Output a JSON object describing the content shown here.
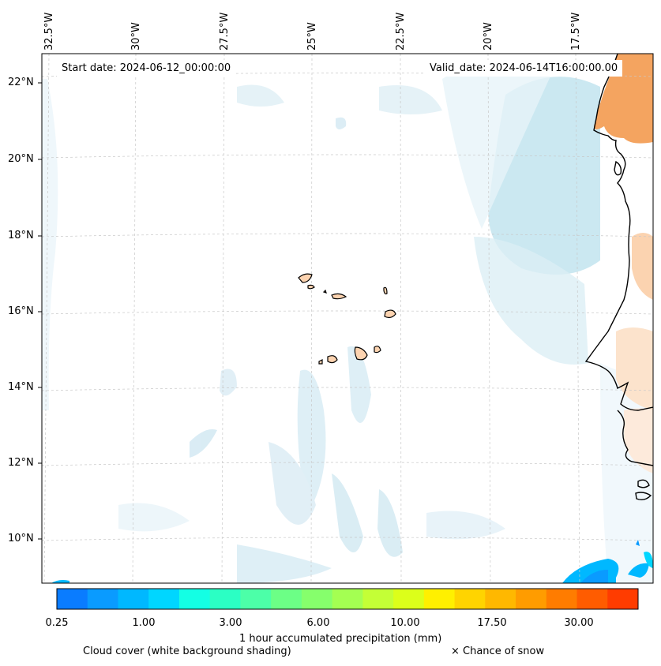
{
  "map": {
    "start_date": "Start date: 2024-06-12_00:00:00",
    "valid_date": "Valid_date: 2024-06-14T16:00:00.00",
    "lon_labels": [
      "32.5°W",
      "30°W",
      "27.5°W",
      "25°W",
      "22.5°W",
      "20°W",
      "17.5°W"
    ],
    "lat_labels": [
      "22°N",
      "20°N",
      "18°N",
      "16°N",
      "14°N",
      "12°N",
      "10°N"
    ]
  },
  "colorbar": {
    "title": "1 hour accumulated precipitation (mm)",
    "tick_labels": [
      "0.25",
      "1.00",
      "3.00",
      "6.00",
      "10.00",
      "17.50",
      "30.00"
    ],
    "colors": [
      "#0a7cff",
      "#0a9bff",
      "#00b8ff",
      "#00d6ff",
      "#14ffe4",
      "#2bffc4",
      "#4cffa8",
      "#6cff86",
      "#86ff6c",
      "#a4ff52",
      "#c4ff36",
      "#dcff1a",
      "#fff000",
      "#ffd400",
      "#ffb800",
      "#ff9c00",
      "#ff7c00",
      "#ff5c00",
      "#ff3c00"
    ]
  },
  "legend": {
    "cloud_cover": "Cloud cover (white background shading)",
    "snow": "× Chance of snow"
  }
}
